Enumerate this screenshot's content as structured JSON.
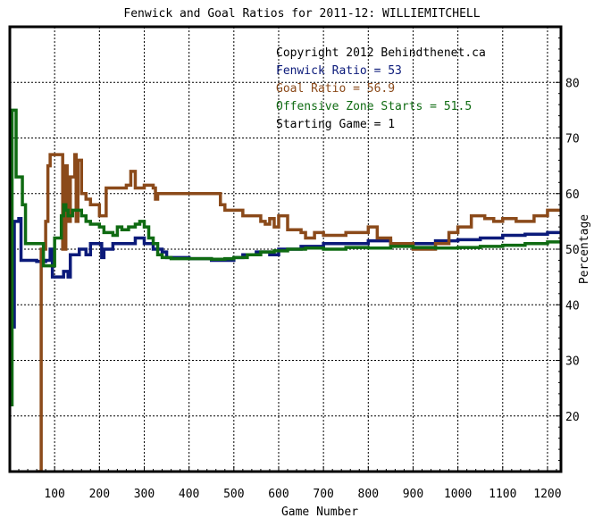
{
  "chart_data": {
    "type": "line",
    "title": "Fenwick and Goal Ratios for 2011-12: WILLIEMITCHELL",
    "xlabel": "Game Number",
    "ylabel": "Percentage",
    "xlim": [
      0,
      1230
    ],
    "ylim": [
      10,
      90
    ],
    "xticks": [
      100,
      200,
      300,
      400,
      500,
      600,
      700,
      800,
      900,
      1000,
      1100,
      1200
    ],
    "yticks": [
      20,
      30,
      40,
      50,
      60,
      70,
      80
    ],
    "grid": true,
    "annotations": [
      "Copyright 2012 Behindthenet.ca",
      "Fenwick Ratio = 53",
      "Goal Ratio = 56.9",
      "Offensive Zone Starts = 51.5",
      "Starting Game = 1"
    ],
    "colors": {
      "fenwick": "#0b1a7a",
      "goal": "#8b4a1a",
      "ozs": "#0f6b12",
      "frame": "#000000",
      "grid": "#000000"
    },
    "series": [
      {
        "key": "fenwick",
        "points": [
          [
            0,
            36
          ],
          [
            5,
            36
          ],
          [
            10,
            55
          ],
          [
            15,
            55
          ],
          [
            20,
            55.5
          ],
          [
            25,
            48
          ],
          [
            40,
            48
          ],
          [
            60,
            47.8
          ],
          [
            80,
            48
          ],
          [
            90,
            50
          ],
          [
            95,
            45
          ],
          [
            110,
            45
          ],
          [
            120,
            46
          ],
          [
            130,
            45
          ],
          [
            135,
            49
          ],
          [
            155,
            50
          ],
          [
            170,
            49
          ],
          [
            180,
            51
          ],
          [
            200,
            51
          ],
          [
            205,
            48.5
          ],
          [
            210,
            50
          ],
          [
            230,
            51
          ],
          [
            260,
            51
          ],
          [
            280,
            52
          ],
          [
            300,
            51
          ],
          [
            320,
            50
          ],
          [
            340,
            49.5
          ],
          [
            350,
            48.5
          ],
          [
            400,
            48.3
          ],
          [
            450,
            48
          ],
          [
            500,
            48.5
          ],
          [
            520,
            49
          ],
          [
            550,
            49.5
          ],
          [
            580,
            49
          ],
          [
            600,
            50
          ],
          [
            650,
            50.5
          ],
          [
            700,
            51
          ],
          [
            750,
            51
          ],
          [
            800,
            51.5
          ],
          [
            850,
            51
          ],
          [
            900,
            51
          ],
          [
            950,
            51.5
          ],
          [
            1000,
            51.7
          ],
          [
            1050,
            52
          ],
          [
            1100,
            52.5
          ],
          [
            1150,
            52.7
          ],
          [
            1200,
            53
          ],
          [
            1230,
            53
          ]
        ]
      },
      {
        "key": "goal",
        "points": [
          [
            60,
            0
          ],
          [
            65,
            10
          ],
          [
            70,
            50
          ],
          [
            80,
            55
          ],
          [
            85,
            65
          ],
          [
            90,
            67
          ],
          [
            110,
            67
          ],
          [
            118,
            50
          ],
          [
            125,
            65
          ],
          [
            128,
            55
          ],
          [
            135,
            63
          ],
          [
            145,
            67
          ],
          [
            148,
            55
          ],
          [
            152,
            66
          ],
          [
            160,
            60
          ],
          [
            170,
            59
          ],
          [
            180,
            58
          ],
          [
            190,
            58
          ],
          [
            200,
            56
          ],
          [
            215,
            61
          ],
          [
            260,
            61.5
          ],
          [
            270,
            64
          ],
          [
            280,
            61
          ],
          [
            300,
            61.5
          ],
          [
            320,
            61
          ],
          [
            325,
            59
          ],
          [
            330,
            60
          ],
          [
            380,
            60
          ],
          [
            420,
            60
          ],
          [
            460,
            60
          ],
          [
            470,
            58
          ],
          [
            480,
            57
          ],
          [
            520,
            56
          ],
          [
            560,
            55
          ],
          [
            570,
            54.5
          ],
          [
            580,
            55.5
          ],
          [
            590,
            54
          ],
          [
            600,
            56
          ],
          [
            620,
            53.5
          ],
          [
            650,
            53
          ],
          [
            660,
            52
          ],
          [
            680,
            53
          ],
          [
            700,
            52.5
          ],
          [
            720,
            52.5
          ],
          [
            750,
            53
          ],
          [
            780,
            53
          ],
          [
            800,
            54
          ],
          [
            820,
            52
          ],
          [
            850,
            51
          ],
          [
            900,
            50
          ],
          [
            950,
            51
          ],
          [
            980,
            53
          ],
          [
            1000,
            54
          ],
          [
            1030,
            56
          ],
          [
            1060,
            55.5
          ],
          [
            1080,
            55
          ],
          [
            1100,
            55.5
          ],
          [
            1130,
            55
          ],
          [
            1170,
            56
          ],
          [
            1200,
            57
          ],
          [
            1230,
            57
          ]
        ]
      },
      {
        "key": "ozs",
        "points": [
          [
            0,
            22
          ],
          [
            5,
            75
          ],
          [
            10,
            75
          ],
          [
            14,
            63
          ],
          [
            20,
            63
          ],
          [
            28,
            58
          ],
          [
            35,
            51
          ],
          [
            40,
            51
          ],
          [
            60,
            51
          ],
          [
            75,
            47
          ],
          [
            85,
            47
          ],
          [
            100,
            52
          ],
          [
            110,
            52
          ],
          [
            115,
            56
          ],
          [
            120,
            58
          ],
          [
            125,
            57
          ],
          [
            130,
            56
          ],
          [
            140,
            57
          ],
          [
            160,
            56
          ],
          [
            170,
            55
          ],
          [
            180,
            54.5
          ],
          [
            200,
            54
          ],
          [
            210,
            53
          ],
          [
            230,
            52.5
          ],
          [
            240,
            54
          ],
          [
            250,
            53.5
          ],
          [
            265,
            54
          ],
          [
            280,
            54.5
          ],
          [
            290,
            55
          ],
          [
            300,
            54
          ],
          [
            310,
            52
          ],
          [
            320,
            51
          ],
          [
            330,
            49
          ],
          [
            340,
            48.5
          ],
          [
            360,
            48.3
          ],
          [
            400,
            48.3
          ],
          [
            450,
            48.2
          ],
          [
            480,
            48.3
          ],
          [
            500,
            48.5
          ],
          [
            530,
            49
          ],
          [
            560,
            49.5
          ],
          [
            590,
            49.7
          ],
          [
            620,
            50
          ],
          [
            660,
            50.2
          ],
          [
            700,
            50
          ],
          [
            750,
            50.3
          ],
          [
            800,
            50.2
          ],
          [
            850,
            50.5
          ],
          [
            900,
            50.3
          ],
          [
            950,
            50.2
          ],
          [
            1000,
            50.3
          ],
          [
            1050,
            50.5
          ],
          [
            1100,
            50.7
          ],
          [
            1150,
            51
          ],
          [
            1200,
            51.3
          ],
          [
            1230,
            51.5
          ]
        ]
      }
    ]
  }
}
